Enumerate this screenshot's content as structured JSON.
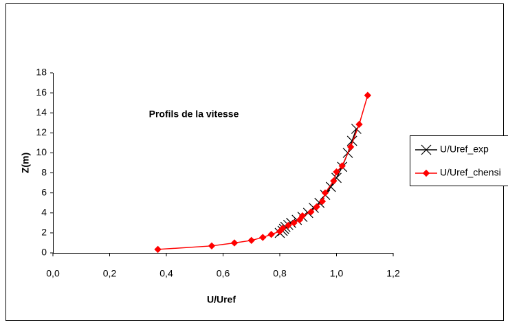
{
  "chart_data": {
    "type": "scatter",
    "title": "Profils de la vitesse",
    "xlabel": "U/Uref",
    "ylabel": "Z(m)",
    "xlim": [
      0,
      1.2
    ],
    "ylim": [
      0,
      18
    ],
    "xticks": [
      {
        "value": 0,
        "label": "0,0"
      },
      {
        "value": 0.2,
        "label": "0,2"
      },
      {
        "value": 0.4,
        "label": "0,4"
      },
      {
        "value": 0.6,
        "label": "0,6"
      },
      {
        "value": 0.8,
        "label": "0,8"
      },
      {
        "value": 1.0,
        "label": "1,0"
      },
      {
        "value": 1.2,
        "label": "1,2"
      }
    ],
    "yticks": [
      0,
      2,
      4,
      6,
      8,
      10,
      12,
      14,
      16,
      18
    ],
    "grid": false,
    "legend": "right",
    "series": [
      {
        "name": "U/Uref_exp",
        "color": "#000000",
        "marker": "x",
        "x": [
          0.8,
          0.81,
          0.815,
          0.82,
          0.83,
          0.84,
          0.86,
          0.88,
          0.9,
          0.92,
          0.94,
          0.96,
          0.98,
          1.0,
          1.02,
          1.04,
          1.055,
          1.07
        ],
        "values": [
          2.0,
          2.2,
          2.4,
          2.6,
          2.8,
          3.0,
          3.3,
          3.6,
          4.0,
          4.5,
          5.0,
          5.8,
          6.6,
          7.5,
          8.6,
          10.0,
          11.2,
          12.4
        ]
      },
      {
        "name": "U/Uref_chensi",
        "color": "#ff0000",
        "marker": "diamond",
        "x": [
          0.37,
          0.56,
          0.64,
          0.7,
          0.74,
          0.77,
          0.8,
          0.81,
          0.83,
          0.85,
          0.87,
          0.88,
          0.91,
          0.93,
          0.95,
          0.96,
          0.99,
          1.0,
          1.02,
          1.05,
          1.08,
          1.11
        ],
        "values": [
          0.35,
          0.7,
          1.0,
          1.25,
          1.55,
          1.85,
          2.15,
          2.45,
          2.75,
          3.0,
          3.3,
          3.7,
          4.1,
          4.6,
          5.15,
          6.0,
          7.2,
          8.1,
          8.7,
          10.6,
          12.85,
          15.75
        ]
      }
    ]
  }
}
